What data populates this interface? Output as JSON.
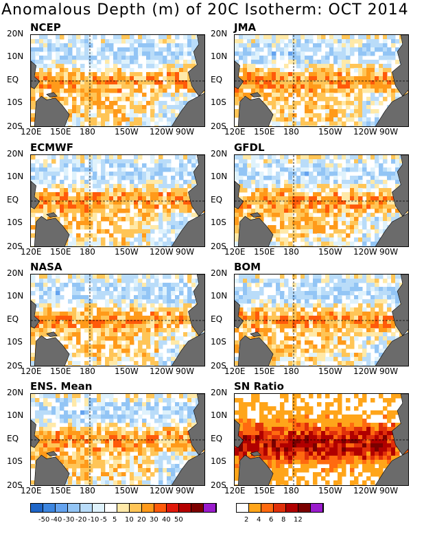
{
  "title": "Anomalous Depth (m) of 20C Isotherm: OCT 2014",
  "panels": [
    {
      "name": "NCEP",
      "style": "anomaly"
    },
    {
      "name": "JMA",
      "style": "anomaly"
    },
    {
      "name": "ECMWF",
      "style": "anomaly"
    },
    {
      "name": "GFDL",
      "style": "anomaly"
    },
    {
      "name": "NASA",
      "style": "anomaly"
    },
    {
      "name": "BOM",
      "style": "anomaly"
    },
    {
      "name": "ENS. Mean",
      "style": "anomaly"
    },
    {
      "name": "SN Ratio",
      "style": "snr"
    }
  ],
  "axes": {
    "x_ticks": [
      "120E",
      "150E",
      "180",
      "150W",
      "120W",
      "90W"
    ],
    "y_ticks": [
      "20N",
      "10N",
      "EQ",
      "10S",
      "20S"
    ]
  },
  "colorbars": {
    "anomaly": {
      "colors": [
        "#1f66c8",
        "#3d86e0",
        "#64a3ef",
        "#93c5f5",
        "#b9dcf9",
        "#dff2fc",
        "#ffffff",
        "#ffe9a8",
        "#ffc557",
        "#ff9a1a",
        "#ff5a0a",
        "#e0180a",
        "#b40000",
        "#7d0000",
        "#9a1ccc"
      ],
      "labels": [
        "-50",
        "-40",
        "-30",
        "-20",
        "-10",
        "-5",
        "5",
        "10",
        "20",
        "30",
        "40",
        "50"
      ]
    },
    "snr": {
      "colors": [
        "#ffffff",
        "#ffa51a",
        "#ff6a10",
        "#e0300a",
        "#b00000",
        "#7a0000",
        "#9a1ccc"
      ],
      "labels": [
        "2",
        "4",
        "6",
        "8",
        "12"
      ]
    }
  },
  "chart_data": {
    "type": "heatmap",
    "title": "Anomalous Depth (m) of 20C Isotherm: OCT 2014",
    "x_ticks": [
      "120E",
      "150E",
      "180",
      "150W",
      "120W",
      "90W"
    ],
    "y_ticks": [
      "20N",
      "10N",
      "EQ",
      "10S",
      "20S"
    ],
    "xlim": [
      "120E",
      "70W"
    ],
    "ylim": [
      "20S",
      "20N"
    ],
    "series": [
      {
        "name": "NCEP"
      },
      {
        "name": "JMA"
      },
      {
        "name": "ECMWF"
      },
      {
        "name": "GFDL"
      },
      {
        "name": "NASA"
      },
      {
        "name": "BOM"
      },
      {
        "name": "ENS. Mean"
      },
      {
        "name": "SN Ratio"
      }
    ],
    "colorbar_levels_anomaly": [
      -50,
      -40,
      -30,
      -20,
      -10,
      -5,
      5,
      10,
      20,
      30,
      40,
      50
    ],
    "colorbar_levels_snr": [
      2,
      4,
      6,
      8,
      12
    ],
    "reference_lines": [
      "EQ",
      "180"
    ],
    "land_color": "#6b6b6b"
  }
}
